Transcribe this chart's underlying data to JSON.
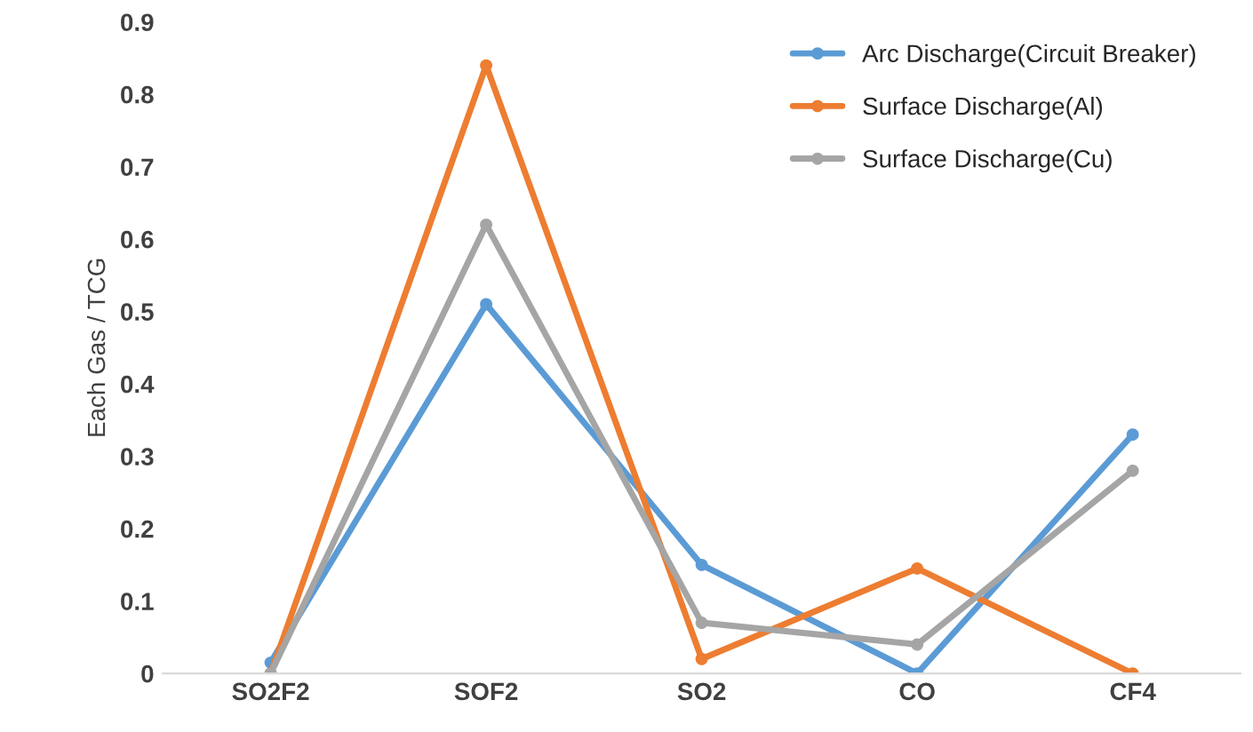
{
  "chart_data": {
    "type": "line",
    "ylabel": "Each Gas / TCG",
    "categories": [
      "SO2F2",
      "SOF2",
      "SO2",
      "CO",
      "CF4"
    ],
    "series": [
      {
        "name": "Arc Discharge(Circuit Breaker)",
        "color": "#5b9bd5",
        "values": [
          0.015,
          0.51,
          0.15,
          0,
          0.33
        ]
      },
      {
        "name": "Surface Discharge(Al)",
        "color": "#ed7d31",
        "values": [
          0,
          0.84,
          0.02,
          0.145,
          0
        ]
      },
      {
        "name": "Surface Discharge(Cu)",
        "color": "#a5a5a5",
        "values": [
          0,
          0.62,
          0.07,
          0.04,
          0.28
        ]
      }
    ],
    "ylim": [
      0,
      0.9
    ],
    "yticks": [
      "0",
      0.1,
      0.2,
      0.3,
      0.4,
      0.5,
      0.6,
      0.7,
      0.8,
      0.9
    ],
    "grid": false,
    "legend": "top right",
    "marker": "circle",
    "line_style": "solid"
  }
}
